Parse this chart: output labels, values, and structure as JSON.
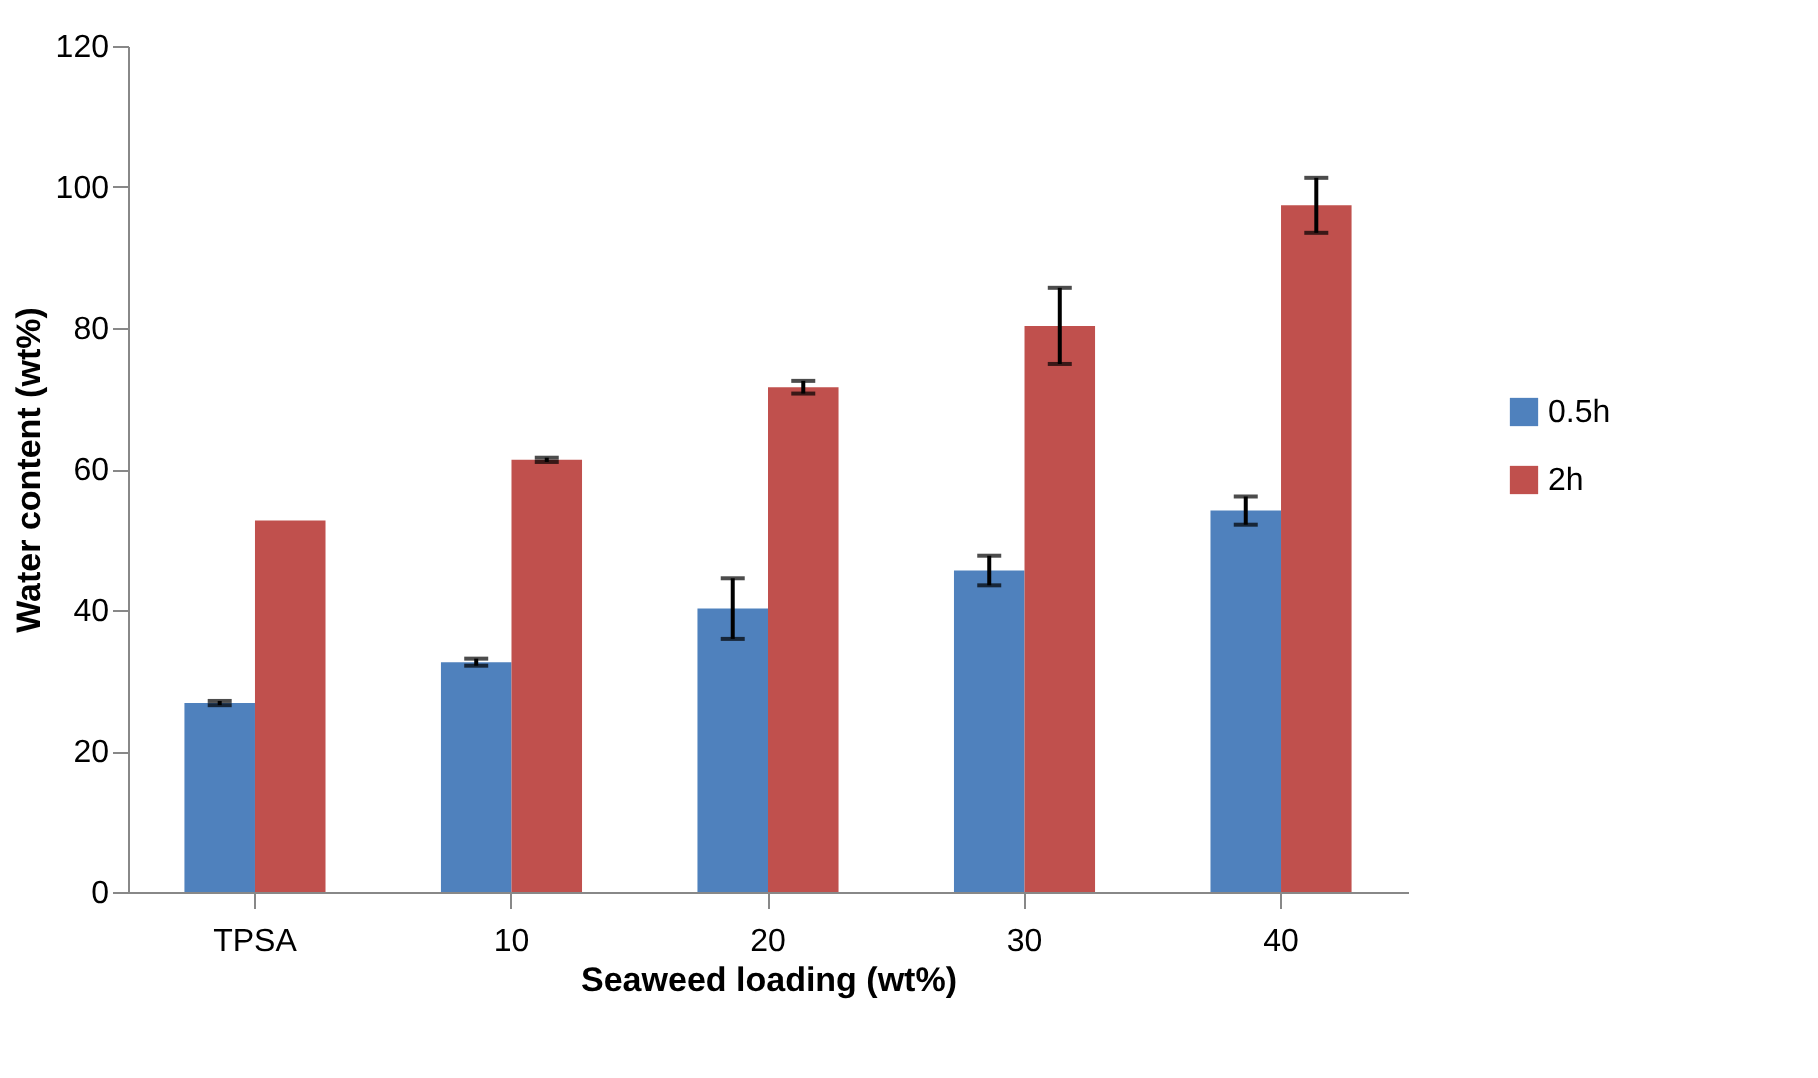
{
  "chart_data": {
    "type": "bar",
    "xlabel": "Seaweed loading (wt%)",
    "ylabel": "Water content (wt%)",
    "categories": [
      "TPSA",
      "10",
      "20",
      "30",
      "40"
    ],
    "series": [
      {
        "name": "0.5h",
        "color": "#4f81bd",
        "values": [
          26.8,
          32.6,
          40.2,
          45.6,
          54.1
        ],
        "errors": [
          0.3,
          0.5,
          4.3,
          2.1,
          2.0
        ]
      },
      {
        "name": "2h",
        "color": "#c0504d",
        "values": [
          52.7,
          61.3,
          71.6,
          80.3,
          97.4
        ],
        "errors": [
          null,
          0.3,
          0.9,
          5.4,
          3.9
        ]
      }
    ],
    "ylim": [
      0,
      120
    ],
    "yticks": [
      0,
      20,
      40,
      60,
      80,
      100,
      120
    ],
    "grid": false,
    "legend": "right"
  }
}
